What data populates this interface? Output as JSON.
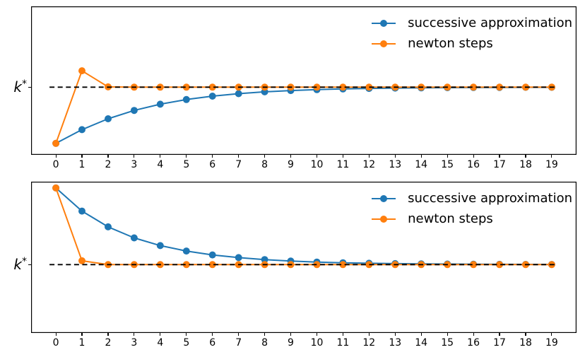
{
  "figure": {
    "background": "#ffffff"
  },
  "colors": {
    "blue": "#1f77b4",
    "orange": "#ff7f0e",
    "reference": "#000000",
    "text": "#000000"
  },
  "ylabel": {
    "base": "k",
    "sup": "*"
  },
  "legend": {
    "position": "upper right",
    "frame": false,
    "items": [
      {
        "label": "successive approximation",
        "color": "#1f77b4"
      },
      {
        "label": "newton steps",
        "color": "#ff7f0e"
      }
    ]
  },
  "chart_data": [
    {
      "type": "line",
      "title": "",
      "xlabel": "",
      "ylabel": "k*",
      "grid": false,
      "x": [
        0,
        1,
        2,
        3,
        4,
        5,
        6,
        7,
        8,
        9,
        10,
        11,
        12,
        13,
        14,
        15,
        16,
        17,
        18,
        19
      ],
      "x_tick_labels": [
        "0",
        "1",
        "2",
        "3",
        "4",
        "5",
        "6",
        "7",
        "8",
        "9",
        "10",
        "11",
        "12",
        "13",
        "14",
        "15",
        "16",
        "17",
        "18",
        "19"
      ],
      "xlim": [
        -0.95,
        19.95
      ],
      "ylim": [
        0.6,
        3.2
      ],
      "y_tick_labels": [
        "k*"
      ],
      "reference_line": {
        "value": 1.7846,
        "label": "k*",
        "style": "dashed",
        "color": "#000000"
      },
      "series": [
        {
          "name": "successive approximation",
          "color": "#1f77b4",
          "marker": "o",
          "values": [
            0.8,
            1.041,
            1.232,
            1.378,
            1.487,
            1.568,
            1.628,
            1.671,
            1.703,
            1.725,
            1.742,
            1.754,
            1.762,
            1.769,
            1.773,
            1.776,
            1.779,
            1.78,
            1.782,
            1.782
          ]
        },
        {
          "name": "newton steps",
          "color": "#ff7f0e",
          "marker": "o",
          "values": [
            0.8,
            2.072,
            1.79,
            1.785,
            1.785,
            1.785,
            1.785,
            1.785,
            1.785,
            1.785,
            1.785,
            1.785,
            1.785,
            1.785,
            1.785,
            1.785,
            1.785,
            1.785,
            1.785,
            1.785
          ]
        }
      ]
    },
    {
      "type": "line",
      "title": "",
      "xlabel": "",
      "ylabel": "k*",
      "grid": false,
      "x": [
        0,
        1,
        2,
        3,
        4,
        5,
        6,
        7,
        8,
        9,
        10,
        11,
        12,
        13,
        14,
        15,
        16,
        17,
        18,
        19
      ],
      "x_tick_labels": [
        "0",
        "1",
        "2",
        "3",
        "4",
        "5",
        "6",
        "7",
        "8",
        "9",
        "10",
        "11",
        "12",
        "13",
        "14",
        "15",
        "16",
        "17",
        "18",
        "19"
      ],
      "xlim": [
        -0.95,
        19.95
      ],
      "ylim": [
        0.7,
        3.1
      ],
      "y_tick_labels": [
        "k*"
      ],
      "reference_line": {
        "value": 1.7846,
        "label": "k*",
        "style": "dashed",
        "color": "#000000"
      },
      "series": [
        {
          "name": "successive approximation",
          "color": "#1f77b4",
          "marker": "o",
          "values": [
            3.0,
            2.634,
            2.383,
            2.208,
            2.086,
            2.0,
            1.938,
            1.895,
            1.864,
            1.841,
            1.825,
            1.814,
            1.806,
            1.8,
            1.796,
            1.793,
            1.79,
            1.789,
            1.788,
            1.787
          ]
        },
        {
          "name": "newton steps",
          "color": "#ff7f0e",
          "marker": "o",
          "values": [
            3.0,
            1.845,
            1.785,
            1.785,
            1.785,
            1.785,
            1.785,
            1.785,
            1.785,
            1.785,
            1.785,
            1.785,
            1.785,
            1.785,
            1.785,
            1.785,
            1.785,
            1.785,
            1.785,
            1.785
          ]
        }
      ]
    }
  ]
}
